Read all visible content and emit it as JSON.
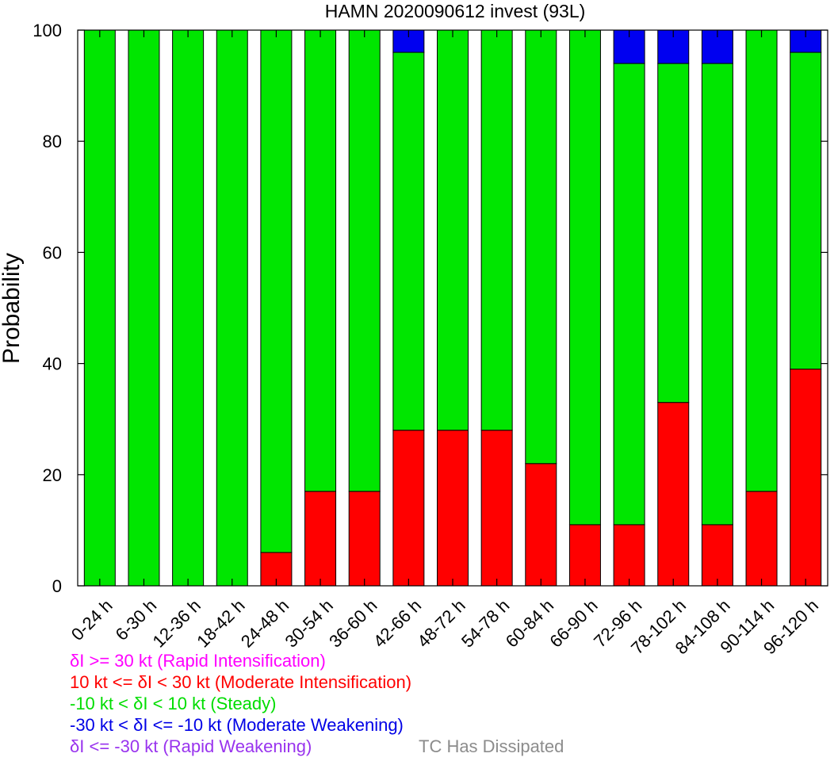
{
  "chart_data": {
    "type": "bar",
    "stacked": true,
    "title": "HAMN 2020090612 invest (93L)",
    "xlabel": "",
    "ylabel": "Probability",
    "ylim": [
      0,
      100
    ],
    "yticks": [
      0,
      20,
      40,
      60,
      80,
      100
    ],
    "grid": false,
    "categories": [
      "0-24 h",
      "6-30 h",
      "12-36 h",
      "18-42 h",
      "24-48 h",
      "30-54 h",
      "36-60 h",
      "42-66 h",
      "48-72 h",
      "54-78 h",
      "60-84 h",
      "66-90 h",
      "72-96 h",
      "78-102 h",
      "84-108 h",
      "90-114 h",
      "96-120 h"
    ],
    "series": [
      {
        "name": "10 kt <= δI < 30 kt (Moderate Intensification)",
        "color": "#ff0000",
        "values": [
          0,
          0,
          0,
          0,
          6,
          17,
          17,
          28,
          28,
          28,
          22,
          11,
          11,
          33,
          11,
          17,
          39
        ]
      },
      {
        "name": "-10 kt < δI < 10 kt (Steady)",
        "color": "#00e600",
        "values": [
          100,
          100,
          100,
          100,
          94,
          83,
          83,
          68,
          72,
          72,
          78,
          89,
          83,
          61,
          83,
          83,
          57
        ]
      },
      {
        "name": "-30 kt < δI <= -10 kt (Moderate Weakening)",
        "color": "#0000f0",
        "values": [
          0,
          0,
          0,
          0,
          0,
          0,
          0,
          4,
          0,
          0,
          0,
          0,
          6,
          6,
          6,
          0,
          4
        ]
      }
    ],
    "legend": {
      "placement": "bottom-left",
      "entries": [
        {
          "label": "δI >= 30 kt (Rapid Intensification)",
          "color": "#ff00ff"
        },
        {
          "label": "10 kt <= δI < 30 kt (Moderate Intensification)",
          "color": "#ff0000"
        },
        {
          "label": "-10 kt < δI < 10 kt (Steady)",
          "color": "#00dd00"
        },
        {
          "label": "-30 kt < δI <= -10 kt (Moderate Weakening)",
          "color": "#0000e6"
        },
        {
          "label": "δI <= -30 kt (Rapid Weakening)",
          "color": "#9933ee"
        },
        {
          "label": "TC Has Dissipated",
          "color": "#8c8c8c"
        }
      ]
    }
  }
}
